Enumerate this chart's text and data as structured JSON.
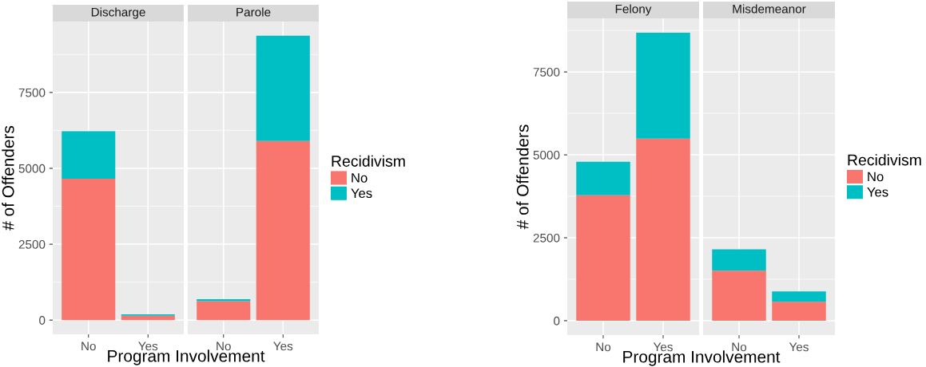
{
  "chart_data": [
    {
      "type": "bar",
      "stacked": true,
      "title": "Discharge",
      "ylabel": "# of Offenders",
      "xlabel": "Program Involvement",
      "categories": [
        "No",
        "Yes"
      ],
      "ylim": [
        -468,
        9836
      ],
      "yticks": [
        0,
        2500,
        5000,
        7500
      ],
      "grid": true,
      "series": [
        {
          "color": "#f8766d",
          "values": [
            4660,
            140
          ]
        },
        {
          "color": "#00bfc4",
          "values": [
            1560,
            50
          ]
        }
      ]
    },
    {
      "type": "bar",
      "stacked": true,
      "title": "Parole",
      "categories": [
        "No",
        "Yes"
      ],
      "ylim": [
        -468,
        9836
      ],
      "yticks": [
        0,
        2500,
        5000,
        7500
      ],
      "grid": true,
      "tick_labels": "x",
      "legend": "right",
      "legend_title": "Recidivism",
      "series": [
        {
          "name": "No",
          "color": "#f8766d",
          "values": [
            620,
            5900
          ]
        },
        {
          "name": "Yes",
          "color": "#00bfc4",
          "values": [
            70,
            3470
          ]
        }
      ]
    },
    {
      "type": "bar",
      "stacked": true,
      "title": "Felony",
      "ylabel": "# of Offenders",
      "xlabel": "Program Involvement",
      "categories": [
        "No",
        "Yes"
      ],
      "ylim": [
        -434,
        9115
      ],
      "yticks": [
        0,
        2500,
        5000,
        7500
      ],
      "grid": true,
      "series": [
        {
          "color": "#f8766d",
          "values": [
            3780,
            5490
          ]
        },
        {
          "color": "#00bfc4",
          "values": [
            1010,
            3190
          ]
        }
      ]
    },
    {
      "type": "bar",
      "stacked": true,
      "title": "Misdemeanor",
      "categories": [
        "No",
        "Yes"
      ],
      "ylim": [
        -434,
        9115
      ],
      "yticks": [
        0,
        2500,
        5000,
        7500
      ],
      "grid": true,
      "tick_labels": "x",
      "legend": "right",
      "legend_title": "Recidivism",
      "series": [
        {
          "name": "No",
          "color": "#f8766d",
          "values": [
            1510,
            570
          ]
        },
        {
          "name": "Yes",
          "color": "#00bfc4",
          "values": [
            640,
            310
          ]
        }
      ]
    }
  ]
}
